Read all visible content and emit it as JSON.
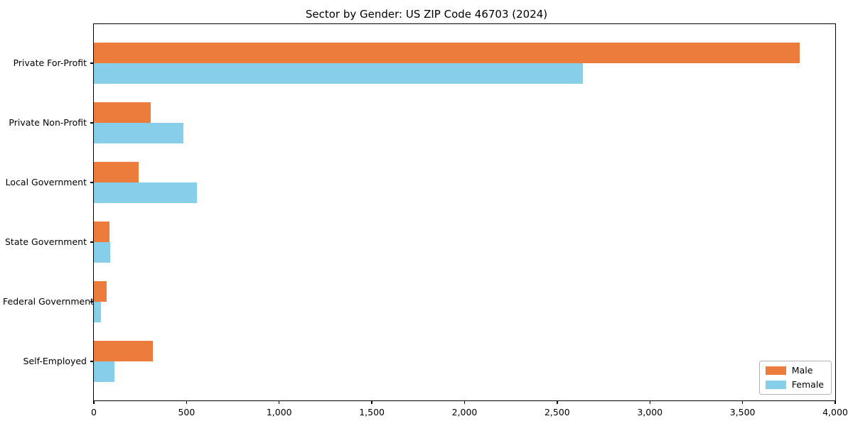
{
  "chart_data": {
    "type": "bar",
    "orientation": "horizontal",
    "title": "Sector by Gender: US ZIP Code 46703 (2024)",
    "categories": [
      "Private For-Profit",
      "Private Non-Profit",
      "Local Government",
      "State Government",
      "Federal Government",
      "Self-Employed"
    ],
    "series": [
      {
        "name": "Male",
        "color": "#EC7C3B",
        "values": [
          3810,
          305,
          240,
          85,
          70,
          320
        ]
      },
      {
        "name": "Female",
        "color": "#87CEEB",
        "values": [
          2640,
          485,
          555,
          90,
          40,
          110
        ]
      }
    ],
    "xlim": [
      0,
      4000
    ],
    "x_ticks": [
      0,
      500,
      1000,
      1500,
      2000,
      2500,
      3000,
      3500,
      4000
    ],
    "x_tick_labels": [
      "0",
      "500",
      "1,000",
      "1,500",
      "2,000",
      "2,500",
      "3,000",
      "3,500",
      "4,000"
    ],
    "xlabel": "",
    "ylabel": "",
    "legend_position": "lower right",
    "grid": false,
    "axis_color": "#000000",
    "background_color": "#FFFFFF"
  }
}
